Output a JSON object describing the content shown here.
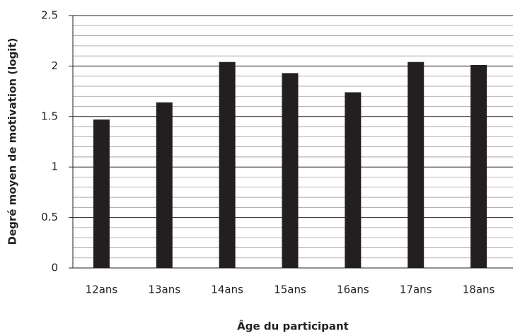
{
  "chart_data": {
    "type": "bar",
    "x_label": "Âge du participant",
    "y_label": "Degré moyen de motivation (logit)",
    "categories": [
      "12ans",
      "13ans",
      "14ans",
      "15ans",
      "16ans",
      "17ans",
      "18ans"
    ],
    "values": [
      1.47,
      1.64,
      2.04,
      1.93,
      1.74,
      2.04,
      2.01
    ],
    "color": "#231f20",
    "ylim": [
      0,
      2.5
    ],
    "yticks": [
      0,
      0.5,
      1,
      1.5,
      2,
      2.5
    ],
    "grid": true,
    "minor_grid": true
  }
}
